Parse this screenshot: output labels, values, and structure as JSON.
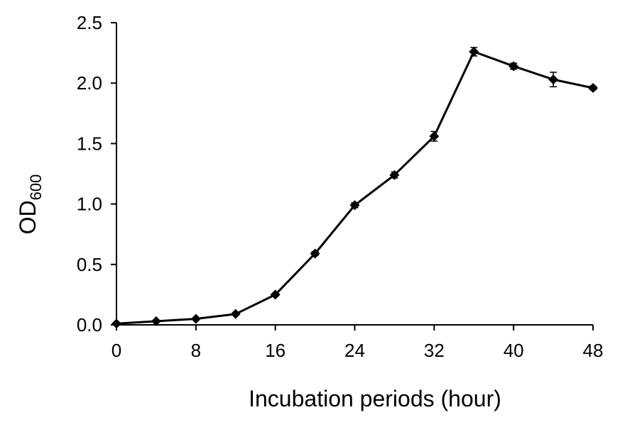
{
  "chart_data": {
    "type": "line",
    "xlabel": "Incubation periods (hour)",
    "ylabel": {
      "main": "OD",
      "sub": "600"
    },
    "xlim": [
      0,
      48
    ],
    "ylim": [
      0,
      2.5
    ],
    "x_ticks": [
      0,
      8,
      16,
      24,
      32,
      40,
      48
    ],
    "y_ticks": [
      0.0,
      0.5,
      1.0,
      1.5,
      2.0,
      2.5
    ],
    "x_tick_labels": [
      "0",
      "8",
      "16",
      "24",
      "32",
      "40",
      "48"
    ],
    "y_tick_labels": [
      "0.0",
      "0.5",
      "1.0",
      "1.5",
      "2.0",
      "2.5"
    ],
    "grid": false,
    "marker": "diamond",
    "color": "#000000",
    "series": [
      {
        "x": [
          0,
          4,
          8,
          12,
          16,
          20,
          24,
          28,
          32,
          36,
          40,
          44,
          48
        ],
        "y": [
          0.01,
          0.03,
          0.05,
          0.09,
          0.25,
          0.59,
          0.99,
          1.24,
          1.56,
          2.26,
          2.14,
          2.03,
          1.96
        ],
        "err": [
          0.005,
          0.005,
          0.005,
          0.01,
          0.01,
          0.015,
          0.02,
          0.025,
          0.04,
          0.035,
          0.025,
          0.06,
          0.015
        ]
      }
    ]
  }
}
